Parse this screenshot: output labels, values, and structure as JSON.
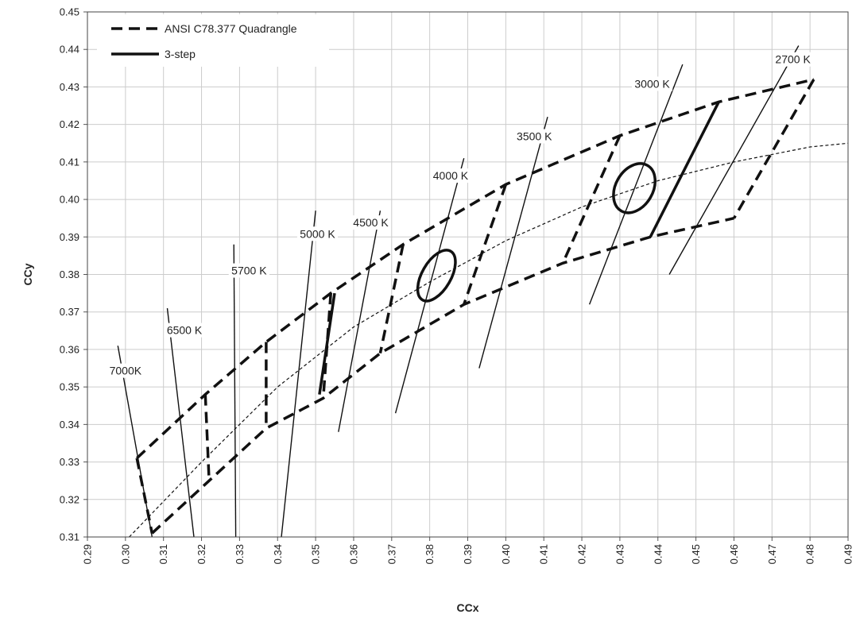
{
  "chart_data": {
    "type": "line",
    "xlabel": "CCx",
    "ylabel": "CCy",
    "xlim": [
      0.29,
      0.49
    ],
    "ylim": [
      0.31,
      0.45
    ],
    "x_ticks": [
      "0.29",
      "0.30",
      "0.31",
      "0.32",
      "0.33",
      "0.34",
      "0.35",
      "0.36",
      "0.37",
      "0.38",
      "0.39",
      "0.40",
      "0.41",
      "0.42",
      "0.43",
      "0.44",
      "0.45",
      "0.46",
      "0.47",
      "0.48",
      "0.49"
    ],
    "y_ticks": [
      "0.31",
      "0.32",
      "0.33",
      "0.34",
      "0.35",
      "0.36",
      "0.37",
      "0.38",
      "0.39",
      "0.40",
      "0.41",
      "0.42",
      "0.43",
      "0.44",
      "0.45"
    ],
    "grid": true,
    "legend": {
      "position": "top-left",
      "entries": [
        {
          "label": "ANSI C78.377 Quadrangle",
          "style": "dashed"
        },
        {
          "label": "3-step",
          "style": "solid"
        }
      ]
    },
    "quadrangle_outline": {
      "top": [
        [
          0.303,
          0.331
        ],
        [
          0.321,
          0.348
        ],
        [
          0.337,
          0.362
        ],
        [
          0.354,
          0.375
        ],
        [
          0.373,
          0.388
        ],
        [
          0.4,
          0.404
        ],
        [
          0.43,
          0.417
        ],
        [
          0.456,
          0.426
        ],
        [
          0.481,
          0.432
        ]
      ],
      "bottom": [
        [
          0.307,
          0.311
        ],
        [
          0.322,
          0.325
        ],
        [
          0.337,
          0.339
        ],
        [
          0.352,
          0.347
        ],
        [
          0.367,
          0.359
        ],
        [
          0.389,
          0.372
        ],
        [
          0.415,
          0.383
        ],
        [
          0.438,
          0.39
        ],
        [
          0.46,
          0.395
        ]
      ]
    },
    "quadrangle_dividers": [
      [
        [
          0.303,
          0.331
        ],
        [
          0.307,
          0.311
        ]
      ],
      [
        [
          0.321,
          0.348
        ],
        [
          0.322,
          0.325
        ]
      ],
      [
        [
          0.337,
          0.362
        ],
        [
          0.337,
          0.339
        ]
      ],
      [
        [
          0.354,
          0.375
        ],
        [
          0.352,
          0.347
        ]
      ],
      [
        [
          0.373,
          0.388
        ],
        [
          0.367,
          0.359
        ]
      ],
      [
        [
          0.4,
          0.404
        ],
        [
          0.389,
          0.372
        ]
      ],
      [
        [
          0.43,
          0.417
        ],
        [
          0.415,
          0.383
        ]
      ],
      [
        [
          0.481,
          0.432
        ],
        [
          0.46,
          0.395
        ]
      ]
    ],
    "three_step_lines": [
      [
        [
          0.355,
          0.375
        ],
        [
          0.351,
          0.348
        ]
      ],
      [
        [
          0.456,
          0.426
        ],
        [
          0.438,
          0.39
        ]
      ]
    ],
    "three_step_ellipses": [
      {
        "center": [
          0.3818,
          0.3797
        ],
        "rx_data": 0.0038,
        "ry_data": 0.0075,
        "rotation_deg": 30
      },
      {
        "center": [
          0.4338,
          0.403
        ],
        "rx_data": 0.0049,
        "ry_data": 0.007,
        "rotation_deg": 30
      }
    ],
    "planckian_locus": [
      [
        0.301,
        0.31
      ],
      [
        0.32,
        0.33
      ],
      [
        0.34,
        0.35
      ],
      [
        0.36,
        0.366
      ],
      [
        0.38,
        0.378
      ],
      [
        0.4,
        0.389
      ],
      [
        0.42,
        0.398
      ],
      [
        0.44,
        0.405
      ],
      [
        0.46,
        0.41
      ],
      [
        0.48,
        0.414
      ],
      [
        0.49,
        0.415
      ]
    ],
    "isotemperature_lines": [
      {
        "label": "7000K",
        "p1": [
          0.298,
          0.361
        ],
        "p2": [
          0.307,
          0.31
        ],
        "label_at": [
          0.3,
          0.3535
        ]
      },
      {
        "label": "6500 K",
        "p1": [
          0.311,
          0.371
        ],
        "p2": [
          0.318,
          0.31
        ],
        "label_at": [
          0.3155,
          0.3643
        ]
      },
      {
        "label": "5700 K",
        "p1": [
          0.3285,
          0.388
        ],
        "p2": [
          0.329,
          0.31
        ],
        "label_at": [
          0.3325,
          0.3802
        ]
      },
      {
        "label": "5000 K",
        "p1": [
          0.35,
          0.397
        ],
        "p2": [
          0.341,
          0.31
        ],
        "label_at": [
          0.3505,
          0.39
        ]
      },
      {
        "label": "4500 K",
        "p1": [
          0.367,
          0.397
        ],
        "p2": [
          0.356,
          0.338
        ],
        "label_at": [
          0.3645,
          0.393
        ]
      },
      {
        "label": "4000 K",
        "p1": [
          0.389,
          0.411
        ],
        "p2": [
          0.371,
          0.343
        ],
        "label_at": [
          0.3855,
          0.4055
        ]
      },
      {
        "label": "3500 K",
        "p1": [
          0.411,
          0.422
        ],
        "p2": [
          0.393,
          0.355
        ],
        "label_at": [
          0.4075,
          0.416
        ]
      },
      {
        "label": "3000 K",
        "p1": [
          0.4465,
          0.436
        ],
        "p2": [
          0.422,
          0.372
        ],
        "label_at": [
          0.4385,
          0.43
        ]
      },
      {
        "label": "2700 K",
        "p1": [
          0.477,
          0.441
        ],
        "p2": [
          0.443,
          0.38
        ],
        "label_at": [
          0.4755,
          0.4365
        ]
      }
    ],
    "colors": {
      "line": "#111111",
      "grid": "#cccccc",
      "text": "#222222"
    }
  }
}
